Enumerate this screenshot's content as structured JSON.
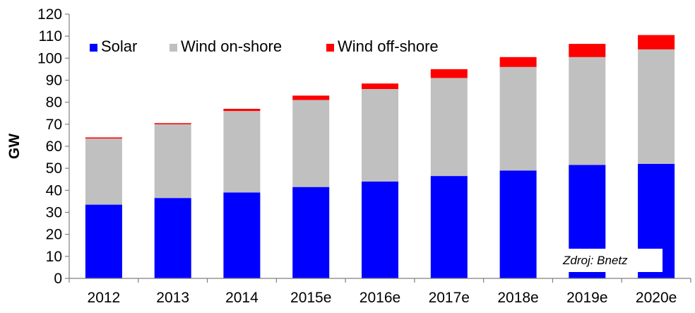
{
  "chart_data": {
    "type": "bar",
    "stacked": true,
    "categories": [
      "2012",
      "2013",
      "2014",
      "2015e",
      "2016e",
      "2017e",
      "2018e",
      "2019e",
      "2020e"
    ],
    "series": [
      {
        "name": "Solar",
        "color": "#0000ff",
        "values": [
          33.5,
          36.5,
          39,
          41.5,
          44,
          46.5,
          49,
          51.5,
          52
        ]
      },
      {
        "name": "Wind on-shore",
        "color": "#c0c0c0",
        "values": [
          30,
          33.5,
          37,
          39.5,
          42,
          44.5,
          47,
          49,
          52
        ]
      },
      {
        "name": "Wind off-shore",
        "color": "#ff0000",
        "values": [
          0.5,
          0.5,
          1,
          2,
          2.5,
          4,
          4.5,
          6,
          6.5
        ]
      }
    ],
    "title": "",
    "xlabel": "",
    "ylabel": "GW",
    "ylim": [
      0,
      120
    ],
    "yticks": [
      0,
      10,
      20,
      30,
      40,
      50,
      60,
      70,
      80,
      90,
      100,
      110,
      120
    ],
    "grid": false,
    "legend_position": "top-left",
    "source_note": "Zdroj: Bnetz"
  }
}
